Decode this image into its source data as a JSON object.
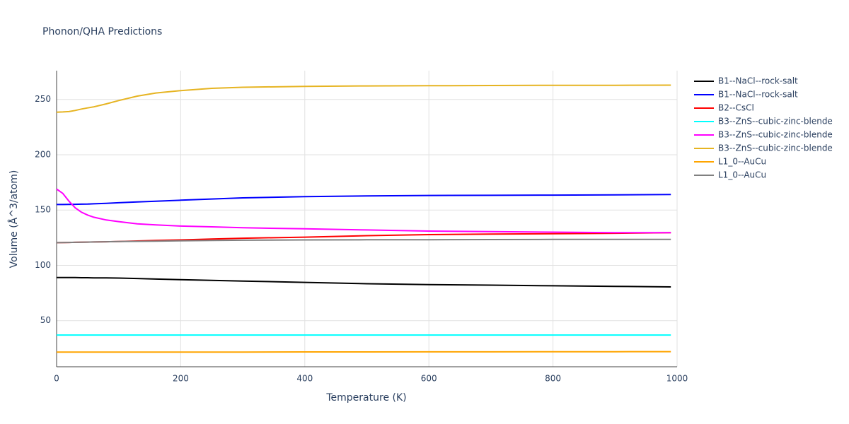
{
  "chart_data": {
    "type": "line",
    "title": "Phonon/QHA Predictions",
    "x_label": "Temperature (K)",
    "y_label": "Volume (Å^3/atom)",
    "x": [
      0,
      10,
      20,
      30,
      40,
      50,
      60,
      80,
      100,
      130,
      160,
      200,
      250,
      300,
      400,
      500,
      600,
      700,
      800,
      900,
      990
    ],
    "xlim": [
      0,
      1000
    ],
    "xticks": [
      0,
      200,
      400,
      600,
      800,
      1000
    ],
    "ylim": [
      8.3,
      276
    ],
    "yticks": [
      50,
      100,
      150,
      200,
      250
    ],
    "grid": true,
    "legend": "right",
    "series": [
      {
        "name": "B1--NaCl--rock-salt",
        "color": "#000000",
        "values": [
          89,
          89,
          88.9,
          88.9,
          88.8,
          88.8,
          88.7,
          88.6,
          88.5,
          88.1,
          87.6,
          87,
          86.4,
          85.8,
          84.6,
          83.4,
          82.6,
          82.1,
          81.5,
          81,
          80.5
        ]
      },
      {
        "name": "B1--NaCl--rock-salt",
        "color": "#0000ff",
        "values": [
          155,
          155,
          155.1,
          155.2,
          155.3,
          155.4,
          155.6,
          156.1,
          156.6,
          157.3,
          158,
          158.9,
          160,
          161,
          162.1,
          162.7,
          163.2,
          163.3,
          163.5,
          163.7,
          164
        ]
      },
      {
        "name": "B2--CsCl",
        "color": "#ff0000",
        "values": [
          120.5,
          120.6,
          120.7,
          120.8,
          120.9,
          121,
          121.1,
          121.3,
          121.5,
          122,
          122.5,
          123,
          123.8,
          124.5,
          125.5,
          126.8,
          127.8,
          128.2,
          128.6,
          129,
          129.5
        ]
      },
      {
        "name": "B3--ZnS--cubic-zinc-blende",
        "color": "#00ffff",
        "values": [
          37,
          37,
          37,
          37,
          37,
          37,
          37,
          37,
          37,
          37,
          37,
          37,
          37,
          37,
          37,
          37,
          37,
          37,
          37,
          37,
          37
        ]
      },
      {
        "name": "B3--ZnS--cubic-zinc-blende",
        "color": "#ff00ff",
        "values": [
          169,
          165,
          158,
          152,
          148,
          145.5,
          143.5,
          141,
          139.5,
          137.5,
          136.5,
          135.5,
          134.8,
          134,
          133,
          132,
          131,
          130.5,
          130,
          129.5,
          129.5
        ]
      },
      {
        "name": "B3--ZnS--cubic-zinc-blende",
        "color": "#e6b422",
        "values": [
          238.5,
          238.7,
          239,
          240,
          241.3,
          242.3,
          243.3,
          246,
          249,
          253,
          255.8,
          258,
          260,
          261,
          261.8,
          262.2,
          262.4,
          262.6,
          262.8,
          262.8,
          262.9
        ]
      },
      {
        "name": "L1_0--AuCu",
        "color": "#ffa500",
        "values": [
          21.5,
          21.5,
          21.5,
          21.5,
          21.5,
          21.5,
          21.5,
          21.5,
          21.5,
          21.5,
          21.5,
          21.6,
          21.6,
          21.6,
          21.7,
          21.7,
          21.8,
          21.8,
          21.9,
          21.9,
          22
        ]
      },
      {
        "name": "L1_0--AuCu",
        "color": "#808080",
        "values": [
          120.5,
          120.6,
          120.7,
          120.8,
          120.9,
          121,
          121.1,
          121.3,
          121.5,
          121.7,
          121.9,
          122.2,
          122.5,
          122.7,
          123,
          123.1,
          123.2,
          123.3,
          123.4,
          123.4,
          123.5
        ]
      }
    ]
  }
}
